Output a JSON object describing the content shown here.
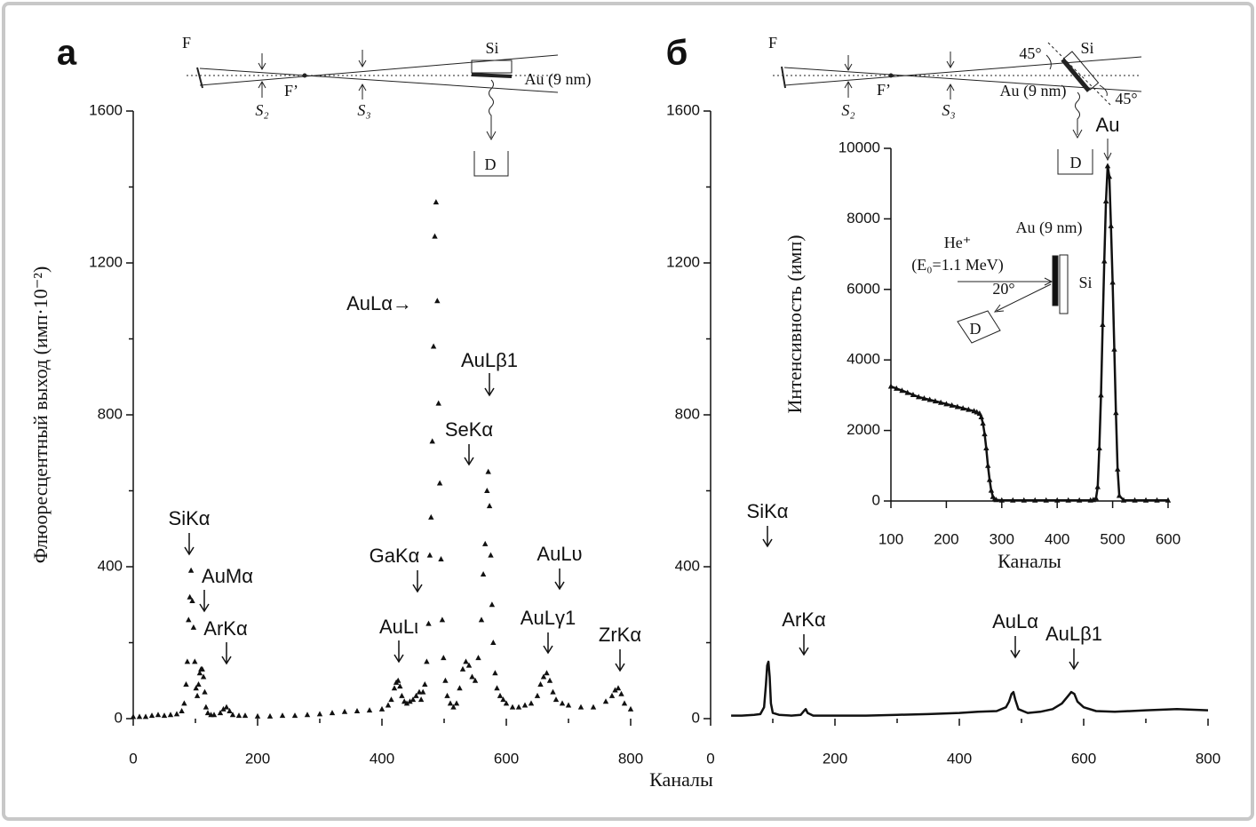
{
  "chart_data": [
    {
      "type": "scatter",
      "panel": "а",
      "xlabel": "Каналы",
      "ylabel": "Флюоресцентный выход (имп·10⁻²)",
      "xlim": [
        0,
        800
      ],
      "ylim": [
        0,
        1600
      ],
      "xticks": [
        0,
        200,
        400,
        600,
        800
      ],
      "yticks": [
        0,
        400,
        800,
        1200,
        1600
      ],
      "xminor": [
        100,
        300,
        500,
        700
      ],
      "yminor": [
        200,
        600,
        1000,
        1400
      ],
      "color": "#111111",
      "x": [
        0,
        10,
        20,
        30,
        40,
        50,
        60,
        70,
        78,
        82,
        85,
        87,
        89,
        91,
        93,
        95,
        97,
        99,
        101,
        103,
        105,
        107,
        109,
        111,
        113,
        115,
        117,
        120,
        125,
        130,
        140,
        145,
        150,
        155,
        160,
        170,
        180,
        200,
        220,
        240,
        260,
        280,
        300,
        320,
        340,
        360,
        380,
        400,
        410,
        415,
        420,
        423,
        426,
        429,
        432,
        436,
        440,
        445,
        450,
        455,
        460,
        463,
        466,
        469,
        472,
        475,
        477,
        479,
        481,
        483,
        485,
        487,
        489,
        491,
        493,
        495,
        497,
        499,
        502,
        505,
        510,
        515,
        520,
        525,
        530,
        535,
        540,
        545,
        550,
        555,
        560,
        563,
        566,
        569,
        571,
        573,
        575,
        577,
        579,
        582,
        585,
        590,
        595,
        600,
        610,
        620,
        630,
        640,
        650,
        655,
        660,
        665,
        670,
        675,
        680,
        690,
        700,
        720,
        740,
        760,
        770,
        775,
        780,
        785,
        790,
        800
      ],
      "values": [
        5,
        5,
        5,
        8,
        10,
        8,
        10,
        12,
        20,
        40,
        90,
        150,
        260,
        320,
        390,
        310,
        240,
        150,
        80,
        60,
        90,
        120,
        130,
        130,
        110,
        70,
        30,
        15,
        10,
        10,
        15,
        25,
        30,
        20,
        10,
        8,
        8,
        6,
        6,
        8,
        8,
        10,
        12,
        15,
        18,
        20,
        22,
        25,
        35,
        50,
        80,
        95,
        100,
        85,
        60,
        45,
        40,
        45,
        50,
        60,
        70,
        50,
        70,
        90,
        150,
        250,
        430,
        530,
        730,
        980,
        1270,
        1360,
        1100,
        830,
        620,
        420,
        260,
        160,
        100,
        60,
        40,
        30,
        40,
        80,
        130,
        150,
        140,
        110,
        100,
        160,
        260,
        380,
        460,
        600,
        650,
        560,
        430,
        300,
        200,
        120,
        80,
        60,
        50,
        40,
        30,
        30,
        35,
        40,
        60,
        90,
        110,
        120,
        100,
        70,
        50,
        40,
        35,
        30,
        30,
        45,
        60,
        75,
        80,
        65,
        40,
        25
      ],
      "annotations": [
        "SiKα",
        "AuMα",
        "ArKα",
        "AuLι",
        "GaKα",
        "AuLα→",
        "AuLβ1",
        "SeKα",
        "AuLυ",
        "AuLγ1",
        "ZrKα"
      ],
      "diagram_labels": [
        "F",
        "F’",
        "S₂",
        "S₃",
        "Si",
        "Au (9 nm)",
        "D"
      ]
    },
    {
      "type": "line",
      "panel": "б",
      "xlim": [
        0,
        800
      ],
      "ylim": [
        0,
        1600
      ],
      "xticks": [
        0,
        200,
        400,
        600,
        800
      ],
      "yticks": [
        0,
        400,
        800,
        1200,
        1600
      ],
      "xminor": [
        100,
        300,
        500,
        700
      ],
      "yminor": [
        200,
        600,
        1000,
        1400
      ],
      "color": "#111111",
      "x": [
        33,
        50,
        70,
        80,
        86,
        89,
        91,
        93,
        95,
        97,
        100,
        110,
        130,
        145,
        150,
        153,
        156,
        165,
        200,
        250,
        300,
        350,
        400,
        430,
        460,
        475,
        480,
        484,
        487,
        490,
        495,
        510,
        530,
        550,
        565,
        575,
        580,
        585,
        590,
        600,
        620,
        650,
        700,
        750,
        800
      ],
      "values": [
        8,
        8,
        10,
        12,
        30,
        90,
        140,
        150,
        110,
        40,
        15,
        10,
        8,
        10,
        20,
        25,
        15,
        8,
        8,
        8,
        10,
        12,
        15,
        18,
        20,
        30,
        45,
        65,
        70,
        50,
        25,
        15,
        18,
        25,
        40,
        60,
        70,
        65,
        45,
        30,
        20,
        18,
        22,
        25,
        22
      ],
      "annotations": [
        "SiKα",
        "ArKα",
        "AuLα",
        "AuLβ1"
      ],
      "diagram_labels": [
        "F",
        "F’",
        "S₂",
        "S₃",
        "Si",
        "45°",
        "Au (9 nm)",
        "45°",
        "D"
      ]
    },
    {
      "type": "line",
      "markers": true,
      "xlabel": "Каналы",
      "ylabel": "Интенсивность (имп)",
      "xlim": [
        100,
        600
      ],
      "ylim": [
        0,
        10000
      ],
      "xticks": [
        100,
        200,
        300,
        400,
        500,
        600
      ],
      "yticks": [
        0,
        2000,
        4000,
        6000,
        8000,
        10000
      ],
      "color": "#111111",
      "x": [
        100,
        110,
        120,
        130,
        140,
        150,
        160,
        170,
        180,
        190,
        200,
        210,
        220,
        230,
        240,
        250,
        255,
        260,
        263,
        266,
        269,
        272,
        275,
        278,
        281,
        284,
        287,
        290,
        300,
        320,
        340,
        360,
        380,
        400,
        420,
        440,
        460,
        465,
        470,
        473,
        476,
        479,
        482,
        485,
        488,
        491,
        494,
        497,
        500,
        503,
        506,
        509,
        512,
        520,
        540,
        560,
        580,
        600
      ],
      "values": [
        3250,
        3190,
        3130,
        3070,
        3010,
        2950,
        2910,
        2870,
        2830,
        2790,
        2750,
        2710,
        2670,
        2630,
        2590,
        2550,
        2520,
        2480,
        2380,
        2200,
        1900,
        1500,
        1000,
        600,
        300,
        120,
        50,
        30,
        20,
        20,
        20,
        20,
        20,
        20,
        20,
        20,
        20,
        30,
        80,
        400,
        1500,
        3000,
        5000,
        6800,
        8500,
        9500,
        9200,
        7800,
        6200,
        4300,
        2500,
        900,
        150,
        20,
        20,
        20,
        20,
        20
      ],
      "annotations": [
        "Au"
      ],
      "diagram_labels": [
        "Au (9 nm)",
        "He⁺",
        "(E₀=1.1 MeV)",
        "20°",
        "Si",
        "D"
      ]
    }
  ]
}
